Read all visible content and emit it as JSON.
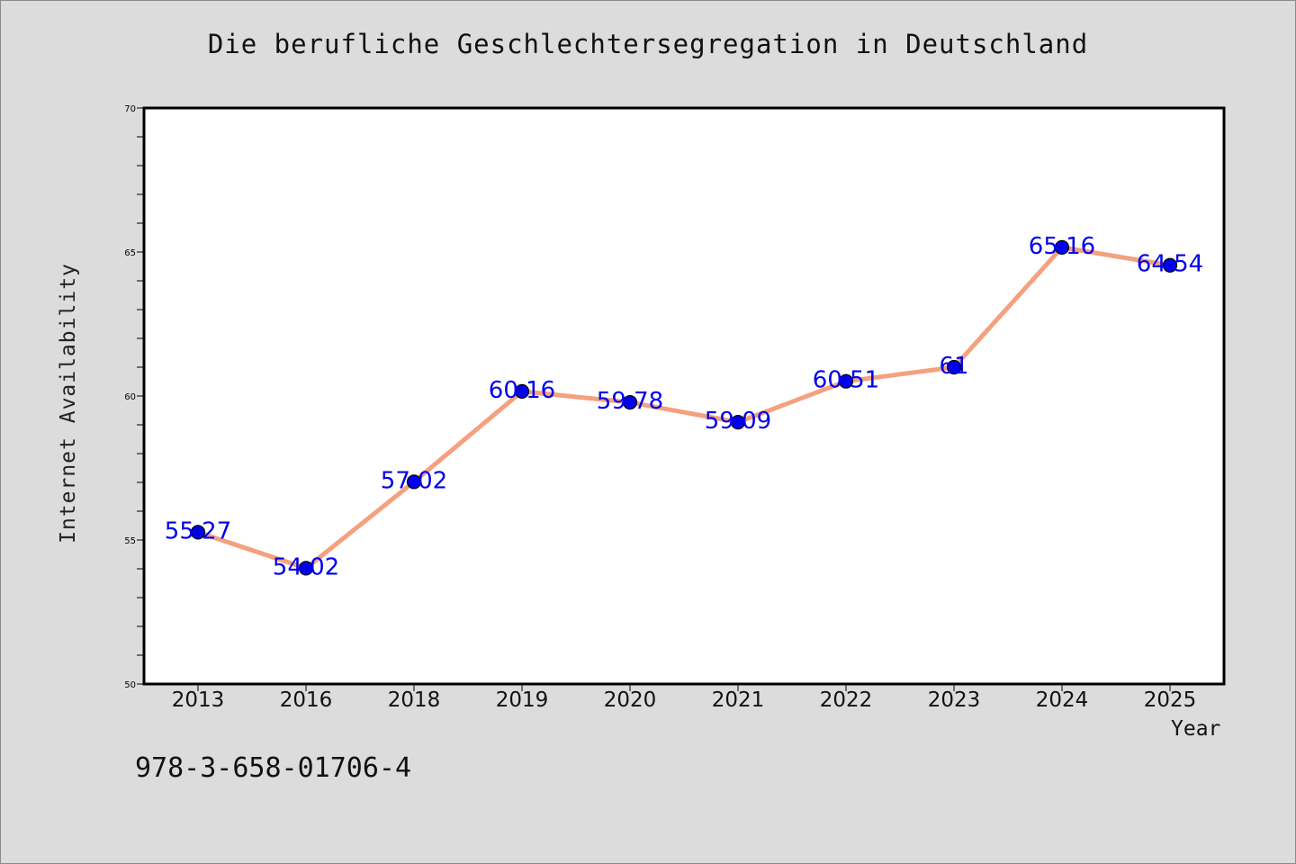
{
  "chart_data": {
    "type": "line",
    "title": "Die berufliche Geschlechtersegregation in Deutschland",
    "xlabel": "Year",
    "ylabel": "Internet Availability",
    "categories": [
      "2013",
      "2016",
      "2018",
      "2019",
      "2020",
      "2021",
      "2022",
      "2023",
      "2024",
      "2025"
    ],
    "series": [
      {
        "values": [
          55.27,
          54.02,
          57.02,
          60.16,
          59.78,
          59.09,
          60.51,
          61,
          65.16,
          64.54
        ],
        "labels": [
          "55.27",
          "54.02",
          "57.02",
          "60.16",
          "59.78",
          "59.09",
          "60.51",
          "61",
          "65.16",
          "64.54"
        ],
        "line_color": "#f5a07e",
        "marker_color": "#0000ee",
        "label_color": "#0000ee"
      }
    ],
    "ylim": [
      50,
      70
    ],
    "yticks": [
      "50",
      "55",
      "60",
      "65",
      "70"
    ],
    "grid": false,
    "legend": "none"
  },
  "footnote": "978-3-658-01706-4"
}
